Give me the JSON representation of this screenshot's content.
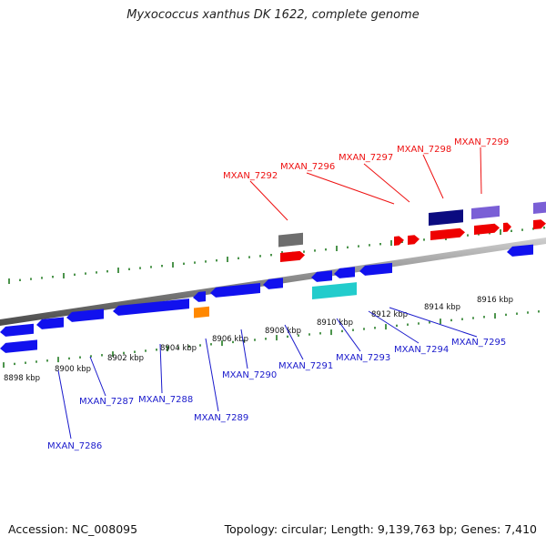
{
  "title": "Myxococcus xanthus DK 1622, complete genome",
  "footer": {
    "accession": "Accession: NC_008095",
    "summary": "Topology: circular; Length: 9,139,763 bp; Genes: 7,410"
  },
  "colors": {
    "backbone": "#8c8c8c",
    "ruler": "#1f7a1f",
    "forward_label": "#ee1111",
    "reverse_label": "#1a1acc"
  },
  "scale_ticks": [
    "8898 kbp",
    "8900 kbp",
    "8902 kbp",
    "8904 kbp",
    "8906 kbp",
    "8908 kbp",
    "8910 kbp",
    "8912 kbp",
    "8914 kbp",
    "8916 kbp"
  ],
  "forward_genes": [
    "MXAN_7292",
    "MXAN_7296",
    "MXAN_7297",
    "MXAN_7298",
    "MXAN_7299"
  ],
  "reverse_genes": [
    "MXAN_7286",
    "MXAN_7287",
    "MXAN_7288",
    "MXAN_7289",
    "MXAN_7290",
    "MXAN_7291",
    "MXAN_7293",
    "MXAN_7294",
    "MXAN_7295"
  ]
}
